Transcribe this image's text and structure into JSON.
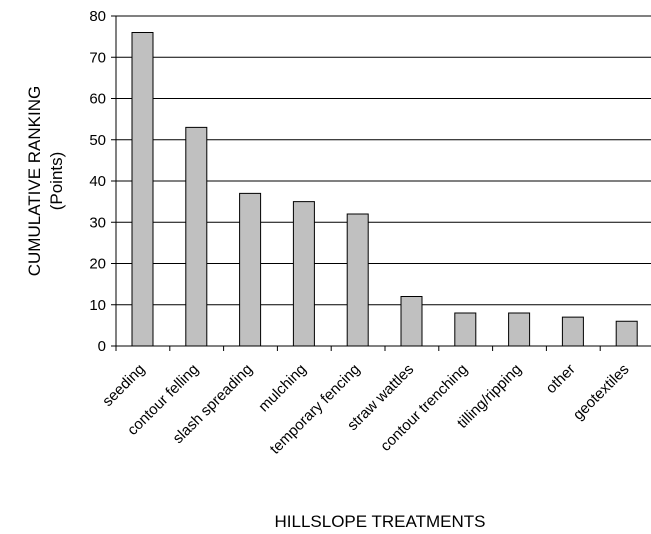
{
  "chart_data": {
    "type": "bar",
    "title": "",
    "xlabel": "HILLSLOPE TREATMENTS",
    "ylabel_line1": "CUMULATIVE RANKING",
    "ylabel_line2": "(Points)",
    "categories": [
      "seeding",
      "contour felling",
      "slash spreading",
      "mulching",
      "temporary fencing",
      "straw wattles",
      "contour trenching",
      "tilling/ripping",
      "other",
      "geotextiles"
    ],
    "values": [
      76,
      53,
      37,
      35,
      32,
      12,
      8,
      8,
      7,
      6
    ],
    "ylim": [
      0,
      80
    ],
    "yticks": [
      "0",
      "10",
      "20",
      "30",
      "40",
      "50",
      "60",
      "70",
      "80"
    ],
    "grid": true,
    "legend": "none",
    "bar_color": "#c0c0c0",
    "bar_edge_color": "#000000",
    "gridline_color": "#000000"
  }
}
